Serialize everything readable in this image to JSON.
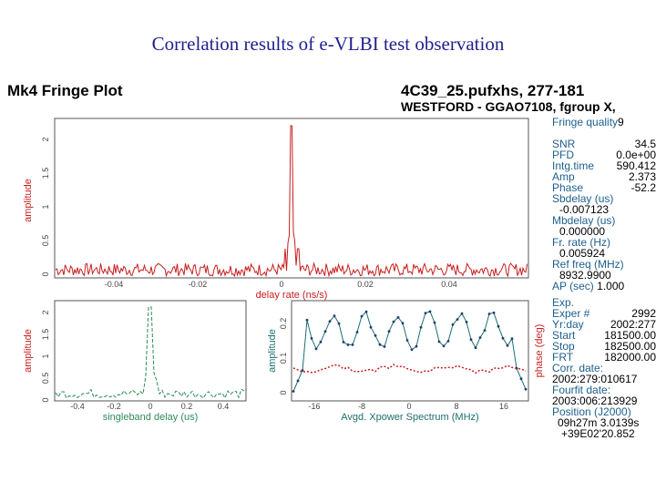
{
  "slide": {
    "title": "Correlation results of e-VLBI test observation"
  },
  "plot": {
    "title": "Mk4 Fringe Plot",
    "source": "4C39_25.pufxhs, 277-181",
    "baseline": "WESTFORD - GGAO7108, fgroup X,"
  },
  "top_panel": {
    "ylabel": "amplitude",
    "xlabel": "delay rate (ns/s)",
    "yticks": [
      "2",
      "1.5",
      "1",
      "0.5",
      "0"
    ],
    "xticks": [
      "-0.04",
      "-0.02",
      "0",
      "0.02",
      "0.04"
    ],
    "line_color": "#c81e1e"
  },
  "bottom_left_panel": {
    "ylabel": "amplitude",
    "xlabel": "singleband delay (us)",
    "yticks": [
      "2",
      "1.5",
      "1",
      "0.5",
      "0"
    ],
    "xticks": [
      "-0.4",
      "-0.2",
      "0",
      "0.2",
      "0.4"
    ],
    "line_color": "#2e8b57"
  },
  "bottom_right_panel": {
    "ylabel": "amplitude",
    "ylabel_right": "phase (deg)",
    "xlabel": "Avgd. Xpower Spectrum (MHz)",
    "xticks": [
      "-16",
      "-8",
      "0",
      "8",
      "16"
    ],
    "yticks_left": [
      "0.2",
      "0.1",
      "0"
    ],
    "amp_color": "#1e6f6f",
    "phase_color": "#c81e1e"
  },
  "side_panel": {
    "fringe_quality": {
      "label": "Fringe quality",
      "value": "9"
    },
    "rows": [
      {
        "label": "SNR",
        "value": "34.5"
      },
      {
        "label": "PFD",
        "value": "0.0e+00"
      },
      {
        "label": "Intg.time",
        "value": "590.412"
      },
      {
        "label": "Amp",
        "value": "2.373"
      },
      {
        "label": "Phase",
        "value": "-52.2"
      }
    ],
    "sbdelay": {
      "label": "Sbdelay (us)",
      "value": "-0.007123"
    },
    "mbdelay": {
      "label": "Mbdelay (us)",
      "value": "0.000000"
    },
    "frrate": {
      "label": "Fr. rate (Hz)",
      "value": "0.005924"
    },
    "reffreq": {
      "label": "Ref freq (MHz)",
      "value": "8932.9900"
    },
    "ap": {
      "label": "AP (sec)",
      "value": "1.000"
    },
    "exp": {
      "label": "Exp."
    },
    "info_rows": [
      {
        "label": "Exper #",
        "value": "2992"
      },
      {
        "label": "Yr:day",
        "value": "2002:277"
      },
      {
        "label": "Start",
        "value": "181500.00"
      },
      {
        "label": "Stop",
        "value": "182500.00"
      },
      {
        "label": "FRT",
        "value": "182000.00"
      }
    ],
    "corr_date": {
      "label": "Corr. date:",
      "value": "2002:279:010617"
    },
    "fourfit_date": {
      "label": "Fourfit date:",
      "value": "2003:006:213929"
    },
    "position": {
      "label": "Position (J2000)",
      "ra": "09h27m 3.0139s",
      "dec": "+39E02'20.852"
    }
  }
}
